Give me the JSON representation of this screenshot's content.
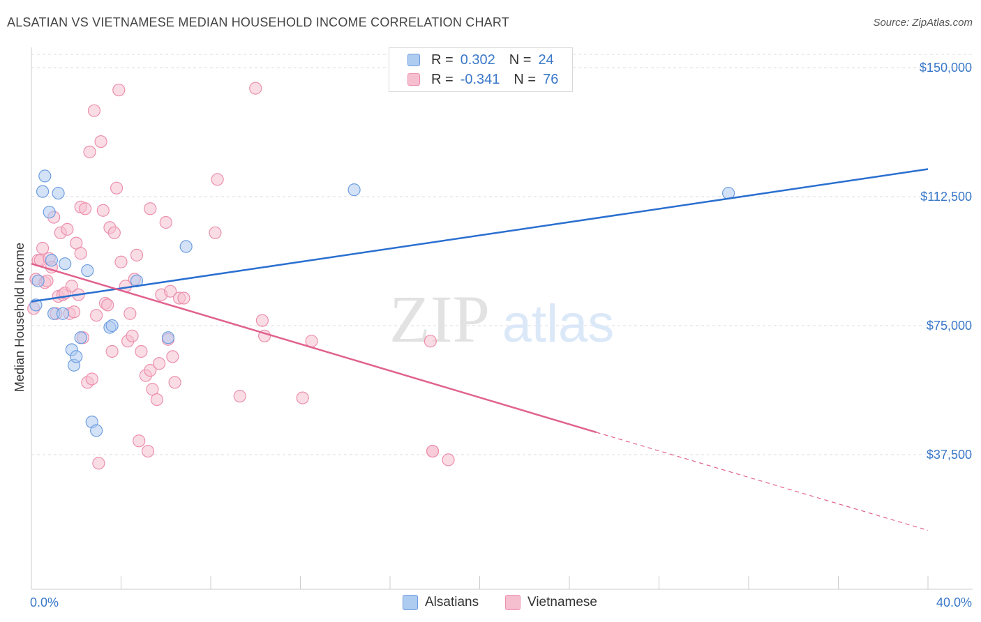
{
  "title": "ALSATIAN VS VIETNAMESE MEDIAN HOUSEHOLD INCOME CORRELATION CHART",
  "source": "Source: ZipAtlas.com",
  "watermark": {
    "zip": "ZIP",
    "atlas": "atlas"
  },
  "legend": {
    "alsatians": {
      "r_label": "R =",
      "r_value": "0.302",
      "n_label": "N =",
      "n_value": "24"
    },
    "vietnamese": {
      "r_label": "R =",
      "r_value": "-0.341",
      "n_label": "N =",
      "n_value": "76"
    }
  },
  "colors": {
    "blue_fill": "#aecbf0",
    "blue_stroke": "#6f9ee0",
    "blue_line": "#2a6fd0",
    "pink_fill": "#f6bfd0",
    "pink_stroke": "#ec90ae",
    "pink_line": "#e0628e",
    "axis_label": "#3a78c9",
    "grid": "#dddddd"
  },
  "chart_data": {
    "type": "scatter",
    "title": "ALSATIAN VS VIETNAMESE MEDIAN HOUSEHOLD INCOME CORRELATION CHART",
    "xlabel": "",
    "ylabel": "Median Household Income",
    "xlim": [
      0,
      40
    ],
    "ylim": [
      0,
      155000
    ],
    "x_tick_labels": [
      {
        "value": 0,
        "label": "0.0%"
      },
      {
        "value": 40,
        "label": "40.0%"
      }
    ],
    "y_tick_labels": [
      {
        "value": 37500,
        "label": "$37,500"
      },
      {
        "value": 75000,
        "label": "$75,000"
      },
      {
        "value": 112500,
        "label": "$112,500"
      },
      {
        "value": 150000,
        "label": "$150,000"
      }
    ],
    "series": [
      {
        "name": "Alsatians",
        "points": [
          [
            0.2,
            81000
          ],
          [
            0.3,
            88000
          ],
          [
            0.5,
            114000
          ],
          [
            0.6,
            118500
          ],
          [
            0.8,
            108000
          ],
          [
            0.9,
            94000
          ],
          [
            1.0,
            78500
          ],
          [
            1.2,
            113500
          ],
          [
            1.4,
            78500
          ],
          [
            1.5,
            93000
          ],
          [
            1.8,
            68000
          ],
          [
            1.9,
            63500
          ],
          [
            2.0,
            66000
          ],
          [
            2.2,
            71500
          ],
          [
            2.5,
            91000
          ],
          [
            2.7,
            47000
          ],
          [
            2.9,
            44500
          ],
          [
            3.5,
            74500
          ],
          [
            3.6,
            75000
          ],
          [
            4.7,
            88000
          ],
          [
            6.1,
            71500
          ],
          [
            6.9,
            98000
          ],
          [
            14.4,
            114500
          ],
          [
            31.1,
            113500
          ]
        ],
        "trend": {
          "x_start": 0,
          "y_start": 82000,
          "x_end": 40,
          "y_end": 120500
        }
      },
      {
        "name": "Vietnamese",
        "points": [
          [
            0.1,
            80000
          ],
          [
            0.2,
            88500
          ],
          [
            0.3,
            94000
          ],
          [
            0.4,
            94000
          ],
          [
            0.5,
            97500
          ],
          [
            0.6,
            87500
          ],
          [
            0.7,
            88000
          ],
          [
            0.8,
            94500
          ],
          [
            0.9,
            92000
          ],
          [
            1.0,
            106500
          ],
          [
            1.1,
            78500
          ],
          [
            1.2,
            83500
          ],
          [
            1.3,
            102000
          ],
          [
            1.4,
            84000
          ],
          [
            1.5,
            84500
          ],
          [
            1.6,
            103000
          ],
          [
            1.7,
            78500
          ],
          [
            1.8,
            86500
          ],
          [
            1.9,
            79000
          ],
          [
            2.0,
            99000
          ],
          [
            2.1,
            84000
          ],
          [
            2.2,
            109500
          ],
          [
            2.2,
            96000
          ],
          [
            2.3,
            71500
          ],
          [
            2.4,
            109000
          ],
          [
            2.5,
            58500
          ],
          [
            2.6,
            125500
          ],
          [
            2.7,
            59500
          ],
          [
            2.8,
            137500
          ],
          [
            2.9,
            78000
          ],
          [
            3.0,
            35000
          ],
          [
            3.1,
            128500
          ],
          [
            3.2,
            108500
          ],
          [
            3.3,
            81500
          ],
          [
            3.4,
            81000
          ],
          [
            3.5,
            103500
          ],
          [
            3.6,
            67500
          ],
          [
            3.7,
            102000
          ],
          [
            3.8,
            115000
          ],
          [
            3.9,
            143500
          ],
          [
            4.0,
            93500
          ],
          [
            4.2,
            86500
          ],
          [
            4.3,
            70500
          ],
          [
            4.4,
            78500
          ],
          [
            4.5,
            72000
          ],
          [
            4.6,
            88500
          ],
          [
            4.7,
            95500
          ],
          [
            4.8,
            41500
          ],
          [
            4.9,
            67500
          ],
          [
            5.1,
            60500
          ],
          [
            5.2,
            38500
          ],
          [
            5.3,
            62000
          ],
          [
            5.3,
            109000
          ],
          [
            5.4,
            56500
          ],
          [
            5.6,
            53500
          ],
          [
            5.7,
            64000
          ],
          [
            5.8,
            84000
          ],
          [
            6.0,
            105000
          ],
          [
            6.1,
            71000
          ],
          [
            6.2,
            85000
          ],
          [
            6.3,
            66000
          ],
          [
            6.4,
            58500
          ],
          [
            6.6,
            83000
          ],
          [
            6.8,
            83000
          ],
          [
            8.2,
            102000
          ],
          [
            8.3,
            117500
          ],
          [
            9.3,
            54500
          ],
          [
            10.0,
            144000
          ],
          [
            10.3,
            76500
          ],
          [
            10.4,
            72000
          ],
          [
            12.1,
            54000
          ],
          [
            12.5,
            70500
          ],
          [
            17.8,
            70500
          ],
          [
            17.9,
            38500
          ],
          [
            17.9,
            38500
          ],
          [
            18.6,
            36000
          ]
        ],
        "trend": {
          "x_start": 0,
          "y_start": 93000,
          "x_end": 25.2,
          "y_end": 44000,
          "dash_x_end": 40,
          "dash_y_end": 15500
        }
      }
    ]
  }
}
